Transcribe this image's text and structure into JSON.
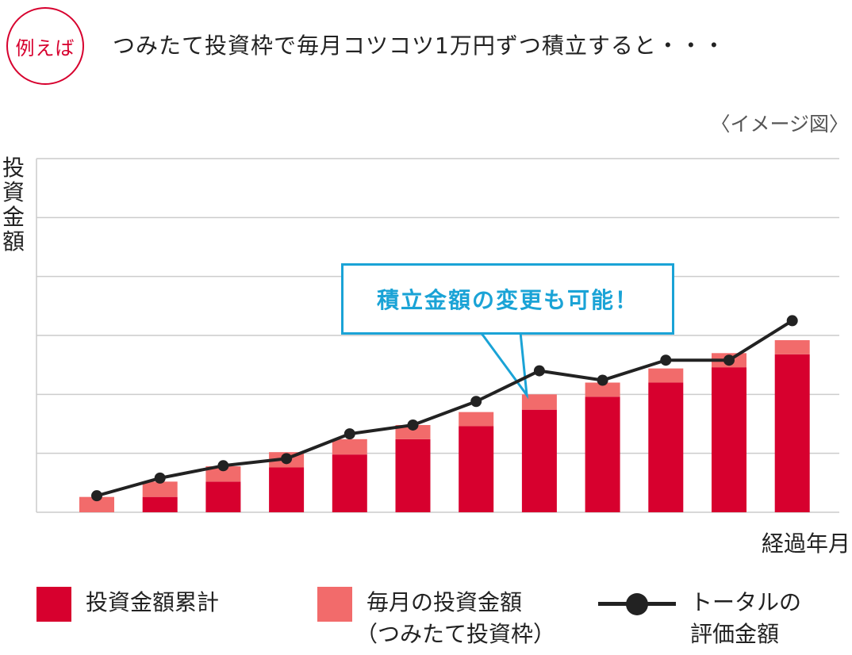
{
  "header": {
    "badge": "例えば",
    "title": "つみたて投資枠で毎月コツコツ1万円ずつ積立すると・・・",
    "note": "〈イメージ図〉"
  },
  "callout": {
    "text": "積立金額の変更も可能！"
  },
  "legend": {
    "cumulative_label": "投資金額累計",
    "monthly_label_line1": "毎月の投資金額",
    "monthly_label_line2": "（つみたて投資枠）",
    "total_label_line1": "トータルの",
    "total_label_line2": "評価金額"
  },
  "colors": {
    "cumulative": "#d7002e",
    "monthly": "#f26b6b",
    "line": "#222222",
    "callout": "#1aa3d6",
    "grid": "#cccccc"
  },
  "chart_data": {
    "type": "bar",
    "xlabel": "経過年月",
    "ylabel": "投資金額",
    "ylim": [
      0,
      6
    ],
    "grid": true,
    "categories": [
      "",
      "",
      "",
      "",
      "",
      "",
      "",
      "",
      "",
      "",
      "",
      ""
    ],
    "series": [
      {
        "name": "投資金額累計",
        "type": "stacked-bar",
        "values": [
          0.0,
          0.26,
          0.52,
          0.76,
          0.98,
          1.24,
          1.46,
          1.74,
          1.96,
          2.2,
          2.46,
          2.68
        ]
      },
      {
        "name": "毎月の投資金額（つみたて投資枠）",
        "type": "stacked-bar",
        "values": [
          0.26,
          0.26,
          0.26,
          0.26,
          0.26,
          0.24,
          0.24,
          0.26,
          0.24,
          0.24,
          0.24,
          0.24
        ]
      },
      {
        "name": "トータルの評価金額",
        "type": "line",
        "values": [
          0.28,
          0.58,
          0.79,
          0.91,
          1.33,
          1.48,
          1.88,
          2.4,
          2.24,
          2.58,
          2.58,
          3.25
        ]
      }
    ]
  }
}
